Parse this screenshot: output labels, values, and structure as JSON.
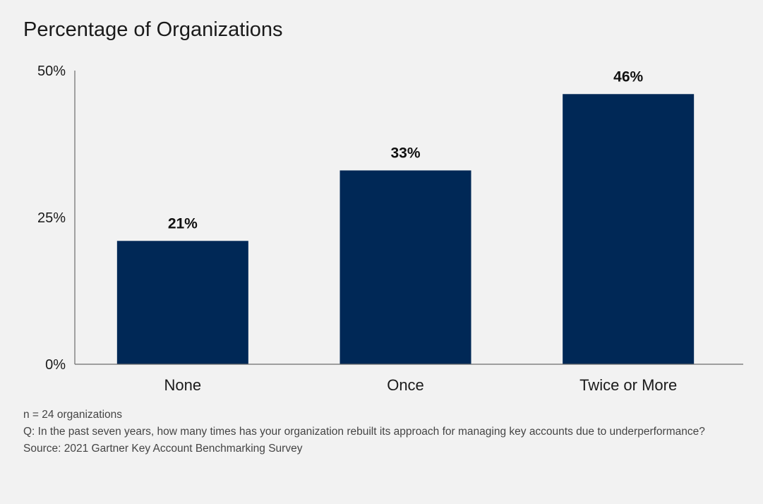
{
  "chart_data": {
    "type": "bar",
    "title": "Percentage of Organizations",
    "categories": [
      "None",
      "Once",
      "Twice or More"
    ],
    "values": [
      21,
      33,
      46
    ],
    "data_labels": [
      "21%",
      "33%",
      "46%"
    ],
    "ylim": [
      0,
      50
    ],
    "yticks": [
      0,
      25,
      50
    ],
    "ytick_labels": [
      "0%",
      "25%",
      "50%"
    ],
    "grid": false,
    "legend": "none",
    "bar_color": "#002856"
  },
  "notes": {
    "n": "n = 24 organizations",
    "question": "Q: In the past seven years, how many times has your organization rebuilt its approach for managing key accounts due to underperformance?",
    "source": "Source: 2021 Gartner Key Account Benchmarking Survey"
  }
}
